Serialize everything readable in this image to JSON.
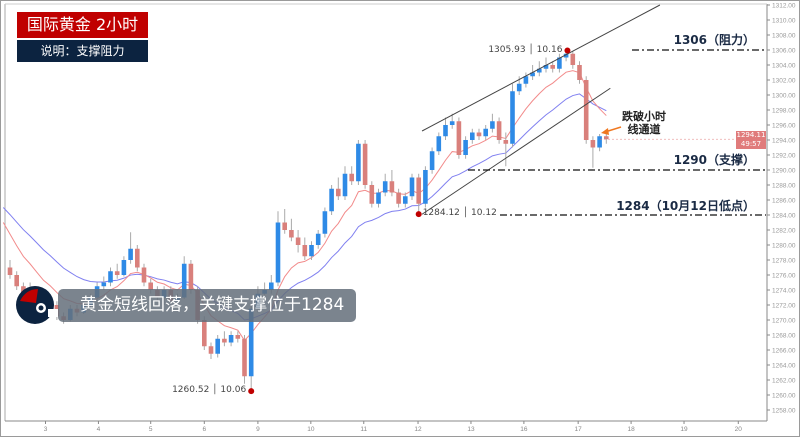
{
  "header": {
    "title": "国际黄金  2小时",
    "subtitle": "说明：支撑阻力"
  },
  "banner": {
    "text": "黄金短线回落，关键支撑位于1284"
  },
  "levels": [
    {
      "price": 1306,
      "label": "1306（阻力）"
    },
    {
      "price": 1290,
      "label": "1290（支撑）"
    },
    {
      "price": 1284,
      "label": "1284（10月12日低点）"
    }
  ],
  "note": {
    "line1": "跌破小时",
    "line2": "线通道"
  },
  "current": {
    "price": "1294.11",
    "countdown": "49:57"
  },
  "colors": {
    "bull": "#2e8ae6",
    "bear": "#d9807c",
    "ma_fast": "#f28b8b",
    "ma_slow": "#8080f0",
    "header_red": "#c00000",
    "header_navy": "#0c2340",
    "arrow": "#f07820"
  },
  "chart_data": {
    "type": "candlestick",
    "title": "国际黄金 2小时",
    "ylim": [
      1257,
      1312
    ],
    "yticks": [
      "1312.00",
      "1310.00",
      "1308.00",
      "1306.00",
      "1304.00",
      "1302.00",
      "1300.00",
      "1298.00",
      "1296.00",
      "1294.00",
      "1292.00",
      "1290.00",
      "1288.00",
      "1286.00",
      "1284.00",
      "1282.00",
      "1280.00",
      "1278.00",
      "1276.00",
      "1274.00",
      "1272.00",
      "1270.00",
      "1268.00",
      "1266.00",
      "1264.00",
      "1262.00",
      "1260.00",
      "1258.00"
    ],
    "xticks": [
      {
        "label": "3",
        "idx": 5.3
      },
      {
        "label": "4",
        "idx": 13.2
      },
      {
        "label": "5",
        "idx": 21.0
      },
      {
        "label": "6",
        "idx": 29.0
      },
      {
        "label": "9",
        "idx": 37.0
      },
      {
        "label": "10",
        "idx": 44.9
      },
      {
        "label": "11",
        "idx": 52.8
      },
      {
        "label": "12",
        "idx": 60.9
      },
      {
        "label": "13",
        "idx": 68.8
      },
      {
        "label": "16",
        "idx": 76.7
      },
      {
        "label": "17",
        "idx": 84.8
      },
      {
        "label": "18",
        "idx": 92.7
      },
      {
        "label": "19",
        "idx": 100.6
      },
      {
        "label": "20",
        "idx": 108.7
      }
    ],
    "candles": [
      [
        1277,
        1278,
        1275.5,
        1276
      ],
      [
        1276,
        1276.5,
        1274,
        1274.5
      ],
      [
        1274.5,
        1275,
        1273,
        1273.5
      ],
      [
        1273.5,
        1275,
        1273,
        1274
      ],
      [
        1274,
        1274.5,
        1272,
        1272.5
      ],
      [
        1272.5,
        1273,
        1271,
        1271.5
      ],
      [
        1271.5,
        1272.8,
        1271,
        1272
      ],
      [
        1272,
        1272.5,
        1270,
        1270.5
      ],
      [
        1270.5,
        1271,
        1269.5,
        1270
      ],
      [
        1270,
        1272,
        1269.8,
        1271.5
      ],
      [
        1271.5,
        1272,
        1270.5,
        1271
      ],
      [
        1271,
        1272.8,
        1270.8,
        1272
      ],
      [
        1272,
        1273.5,
        1271.5,
        1273
      ],
      [
        1273,
        1275,
        1272.5,
        1274.5
      ],
      [
        1274.5,
        1275.8,
        1274,
        1275
      ],
      [
        1275,
        1277,
        1274.5,
        1276.5
      ],
      [
        1276.5,
        1277.5,
        1275.5,
        1276
      ],
      [
        1276,
        1278.5,
        1275.8,
        1278
      ],
      [
        1278,
        1281.7,
        1277.5,
        1279.5
      ],
      [
        1279.5,
        1280,
        1276.5,
        1277
      ],
      [
        1277,
        1277.5,
        1274.5,
        1275
      ],
      [
        1275,
        1275.5,
        1273.5,
        1274
      ],
      [
        1274,
        1274.5,
        1272.5,
        1273
      ],
      [
        1273,
        1274.5,
        1272,
        1274
      ],
      [
        1274,
        1274.5,
        1272,
        1272.5
      ],
      [
        1272.5,
        1273.5,
        1272,
        1273
      ],
      [
        1273,
        1278.5,
        1272.8,
        1277.5
      ],
      [
        1277.5,
        1278,
        1273.5,
        1274
      ],
      [
        1274,
        1274.5,
        1269.5,
        1270
      ],
      [
        1270,
        1270.5,
        1266,
        1266.5
      ],
      [
        1266.5,
        1267,
        1264.8,
        1265.5
      ],
      [
        1265.5,
        1268,
        1265,
        1267.5
      ],
      [
        1267.5,
        1268.5,
        1266.5,
        1267
      ],
      [
        1267,
        1268.5,
        1266.5,
        1268
      ],
      [
        1268,
        1268.5,
        1267,
        1267.5
      ],
      [
        1267.5,
        1268,
        1261.5,
        1262.5
      ],
      [
        1262.5,
        1272,
        1260.52,
        1271.5
      ],
      [
        1271.5,
        1274.5,
        1271,
        1273.5
      ],
      [
        1273.5,
        1275,
        1273,
        1274
      ],
      [
        1274,
        1276,
        1273.5,
        1275
      ],
      [
        1275,
        1284.5,
        1274.5,
        1283
      ],
      [
        1283,
        1284.8,
        1281.5,
        1282
      ],
      [
        1282,
        1283.5,
        1280.5,
        1281
      ],
      [
        1281,
        1282,
        1279,
        1280
      ],
      [
        1280,
        1281,
        1278,
        1278.5
      ],
      [
        1278.5,
        1280.5,
        1278,
        1280
      ],
      [
        1280,
        1282,
        1279.5,
        1281.5
      ],
      [
        1281.5,
        1285,
        1281,
        1284.5
      ],
      [
        1284.5,
        1288,
        1284,
        1287.5
      ],
      [
        1287.5,
        1289,
        1286,
        1286.5
      ],
      [
        1286.5,
        1290.5,
        1286,
        1289.5
      ],
      [
        1289.5,
        1290.5,
        1288,
        1288.5
      ],
      [
        1288.5,
        1294,
        1288,
        1293.5
      ],
      [
        1293.5,
        1294,
        1287.5,
        1288
      ],
      [
        1288,
        1288.5,
        1285,
        1285.5
      ],
      [
        1285.5,
        1287.5,
        1285,
        1287
      ],
      [
        1287,
        1289.5,
        1286.5,
        1288.5
      ],
      [
        1288.5,
        1290,
        1286.5,
        1287
      ],
      [
        1287,
        1287.5,
        1285,
        1285.5
      ],
      [
        1285.5,
        1287,
        1285,
        1286.5
      ],
      [
        1286.5,
        1289.5,
        1286,
        1289
      ],
      [
        1289,
        1289.5,
        1284.12,
        1285.5
      ],
      [
        1285.5,
        1290.5,
        1285,
        1290
      ],
      [
        1290,
        1293,
        1289.5,
        1292.5
      ],
      [
        1292.5,
        1295,
        1292,
        1294.5
      ],
      [
        1294.5,
        1297,
        1294,
        1296
      ],
      [
        1296,
        1297.5,
        1295.5,
        1296.5
      ],
      [
        1296.5,
        1297,
        1291.5,
        1292
      ],
      [
        1292,
        1294.5,
        1291.5,
        1294
      ],
      [
        1294,
        1295.5,
        1293.5,
        1295
      ],
      [
        1295,
        1295.5,
        1294,
        1294.5
      ],
      [
        1294.5,
        1296,
        1294,
        1295.5
      ],
      [
        1295.5,
        1297.5,
        1295,
        1296.5
      ],
      [
        1296.5,
        1297,
        1293.5,
        1294
      ],
      [
        1294,
        1295,
        1290.5,
        1293.5
      ],
      [
        1293.5,
        1301.5,
        1293,
        1300.5
      ],
      [
        1300.5,
        1302.5,
        1300,
        1301.5
      ],
      [
        1301.5,
        1303,
        1301,
        1302.5
      ],
      [
        1302.5,
        1304,
        1302,
        1303
      ],
      [
        1303,
        1304.5,
        1302.5,
        1303.5
      ],
      [
        1303.5,
        1305,
        1303,
        1304
      ],
      [
        1304,
        1304.5,
        1303,
        1303.5
      ],
      [
        1303.5,
        1305.5,
        1303,
        1305
      ],
      [
        1305,
        1305.93,
        1304.5,
        1305.5
      ],
      [
        1305.5,
        1305.8,
        1303.5,
        1304
      ],
      [
        1304,
        1304.5,
        1301.5,
        1302
      ],
      [
        1302,
        1302.5,
        1293.5,
        1294
      ],
      [
        1294,
        1294.5,
        1290.3,
        1293
      ],
      [
        1293,
        1294.8,
        1292.5,
        1294.5
      ],
      [
        1294.5,
        1294.8,
        1293.5,
        1294.11
      ]
    ],
    "ma_seed": {
      "fast": 1283,
      "slow": 1285
    },
    "ma_periods": {
      "fast": 8,
      "slow": 18
    },
    "channel": {
      "upper": [
        [
          61.5,
          1295.2
        ],
        [
          97,
          1312
        ]
      ],
      "lower": [
        [
          61.5,
          1284.1
        ],
        [
          89.6,
          1300.9
        ]
      ]
    },
    "annotations": [
      {
        "idx": 36,
        "price": 1260.52,
        "text": "1260.52 │ 10.06",
        "side": "left"
      },
      {
        "idx": 61,
        "price": 1284.12,
        "text": "1284.12 │ 10.12",
        "side": "right"
      },
      {
        "idx": 83.2,
        "price": 1305.93,
        "text": "1305.93 │ 10.16",
        "side": "left"
      }
    ]
  }
}
